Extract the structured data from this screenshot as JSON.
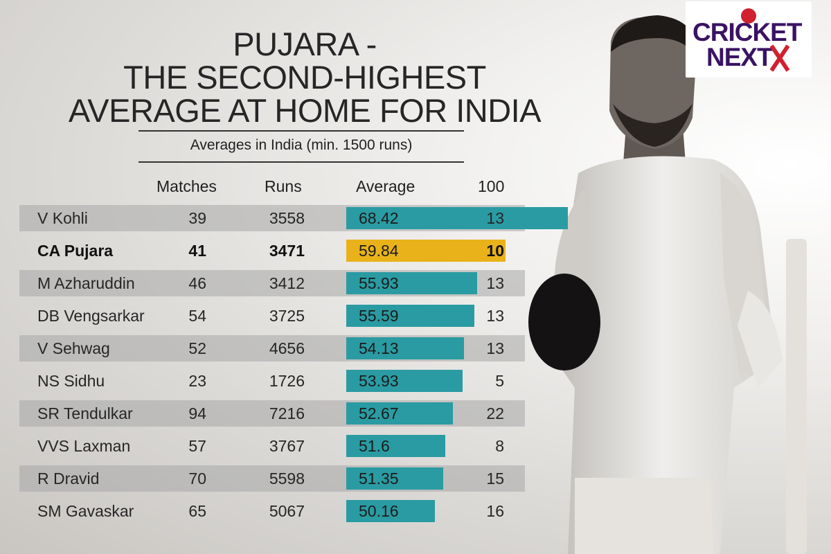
{
  "title": {
    "line1": "PUJARA -",
    "line2": "THE SECOND-HIGHEST",
    "line3": "AVERAGE AT HOME FOR INDIA"
  },
  "subtitle": "Averages in India (min. 1500 runs)",
  "columns": {
    "matches": "Matches",
    "runs": "Runs",
    "average": "Average",
    "hundreds": "100"
  },
  "logo": {
    "line1": "CRICKET",
    "line2": "NEXT"
  },
  "colors": {
    "bar": "#2a9ba2",
    "highlight": "#e9b21b",
    "logo": "#3a1363",
    "logo_ball": "#d1202f"
  },
  "chart_data": {
    "type": "table",
    "title": "PUJARA - THE SECOND-HIGHEST AVERAGE AT HOME FOR INDIA",
    "subtitle": "Averages in India (min. 1500 runs)",
    "columns": [
      "Matches",
      "Runs",
      "Average",
      "100"
    ],
    "rows": [
      {
        "player": "V Kohli",
        "matches": "39",
        "runs": "3558",
        "average": "68.42",
        "hundreds": "13",
        "highlight": false
      },
      {
        "player": "CA Pujara",
        "matches": "41",
        "runs": "3471",
        "average": "59.84",
        "hundreds": "10",
        "highlight": true
      },
      {
        "player": "M Azharuddin",
        "matches": "46",
        "runs": "3412",
        "average": "55.93",
        "hundreds": "13",
        "highlight": false
      },
      {
        "player": "DB Vengsarkar",
        "matches": "54",
        "runs": "3725",
        "average": "55.59",
        "hundreds": "13",
        "highlight": false
      },
      {
        "player": "V Sehwag",
        "matches": "52",
        "runs": "4656",
        "average": "54.13",
        "hundreds": "13",
        "highlight": false
      },
      {
        "player": "NS Sidhu",
        "matches": "23",
        "runs": "1726",
        "average": "53.93",
        "hundreds": "5",
        "highlight": false
      },
      {
        "player": "SR Tendulkar",
        "matches": "94",
        "runs": "7216",
        "average": "52.67",
        "hundreds": "22",
        "highlight": false
      },
      {
        "player": "VVS Laxman",
        "matches": "57",
        "runs": "3767",
        "average": "51.6",
        "hundreds": "8",
        "highlight": false
      },
      {
        "player": "R Dravid",
        "matches": "70",
        "runs": "5598",
        "average": "51.35",
        "hundreds": "15",
        "highlight": false
      },
      {
        "player": "SM Gavaskar",
        "matches": "65",
        "runs": "5067",
        "average": "50.16",
        "hundreds": "16",
        "highlight": false
      }
    ]
  }
}
